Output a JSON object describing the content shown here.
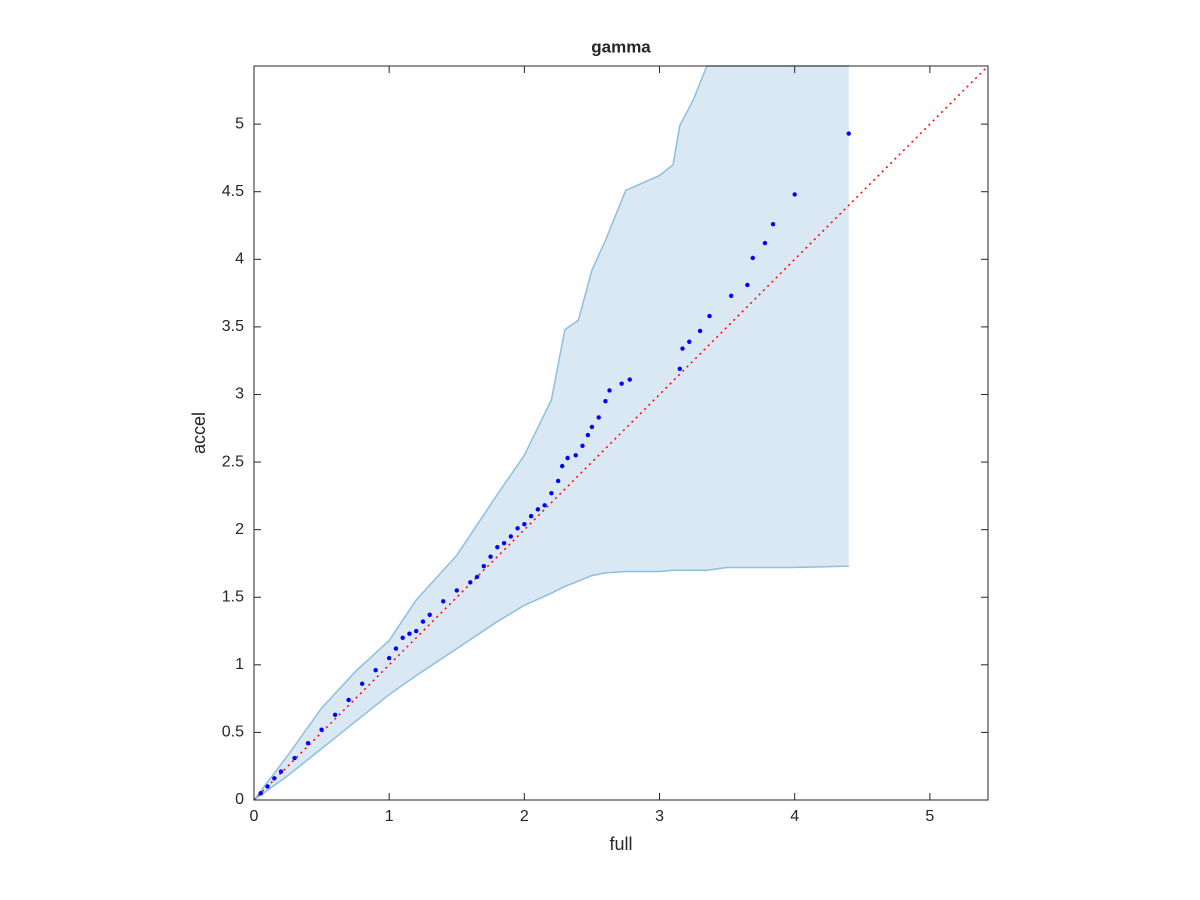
{
  "chart_data": {
    "type": "scatter",
    "title": "gamma",
    "x_label": "full",
    "y_label": "accel",
    "x": [
      0.05,
      0.1,
      0.15,
      0.2,
      0.3,
      0.4,
      0.5,
      0.6,
      0.7,
      0.8,
      0.9,
      1.0,
      1.05,
      1.1,
      1.15,
      1.2,
      1.25,
      1.3,
      1.4,
      1.5,
      1.6,
      1.65,
      1.7,
      1.75,
      1.8,
      1.85,
      1.9,
      1.95,
      2.0,
      2.05,
      2.1,
      2.15,
      2.2,
      2.25,
      2.28,
      2.32,
      2.38,
      2.43,
      2.47,
      2.5,
      2.55,
      2.6,
      2.63,
      2.72,
      2.78,
      3.15,
      3.17,
      3.22,
      3.3,
      3.37,
      3.53,
      3.65,
      3.69,
      3.78,
      3.84,
      4.0,
      4.4
    ],
    "values": [
      0.05,
      0.1,
      0.16,
      0.21,
      0.31,
      0.42,
      0.52,
      0.63,
      0.74,
      0.86,
      0.96,
      1.05,
      1.12,
      1.2,
      1.23,
      1.25,
      1.32,
      1.37,
      1.47,
      1.55,
      1.61,
      1.65,
      1.73,
      1.8,
      1.87,
      1.9,
      1.95,
      2.01,
      2.04,
      2.1,
      2.15,
      2.18,
      2.27,
      2.36,
      2.47,
      2.53,
      2.55,
      2.62,
      2.7,
      2.76,
      2.83,
      2.95,
      3.03,
      3.08,
      3.11,
      3.19,
      3.34,
      3.39,
      3.47,
      3.58,
      3.73,
      3.81,
      4.01,
      4.12,
      4.26,
      4.48,
      4.93
    ],
    "color": "#0000ff",
    "band": {
      "x": [
        0,
        0.25,
        0.5,
        0.75,
        1,
        1.2,
        1.5,
        1.8,
        2,
        2.2,
        2.3,
        2.4,
        2.5,
        2.6,
        2.75,
        3,
        3.1,
        3.15,
        3.25,
        3.35,
        3.5,
        4,
        4.4
      ],
      "upper": [
        0,
        0.33,
        0.68,
        0.95,
        1.18,
        1.48,
        1.81,
        2.26,
        2.55,
        2.96,
        3.48,
        3.55,
        3.92,
        4.14,
        4.51,
        4.62,
        4.7,
        4.99,
        5.18,
        5.43,
        5.43,
        5.43,
        5.43
      ],
      "lower": [
        0,
        0.18,
        0.38,
        0.58,
        0.78,
        0.92,
        1.12,
        1.32,
        1.44,
        1.53,
        1.58,
        1.62,
        1.66,
        1.68,
        1.69,
        1.69,
        1.7,
        1.7,
        1.7,
        1.7,
        1.72,
        1.72,
        1.73
      ],
      "fill": "#d9e8f3",
      "stroke": "#8dbfdf"
    },
    "reference_line_color": "#ff0000",
    "xlim": [
      0,
      5.43
    ],
    "ylim": [
      0,
      5.43
    ],
    "xticks": [
      0,
      1,
      2,
      3,
      4,
      5
    ],
    "yticks": [
      0,
      0.5,
      1,
      1.5,
      2,
      2.5,
      3,
      3.5,
      4,
      4.5,
      5
    ]
  }
}
